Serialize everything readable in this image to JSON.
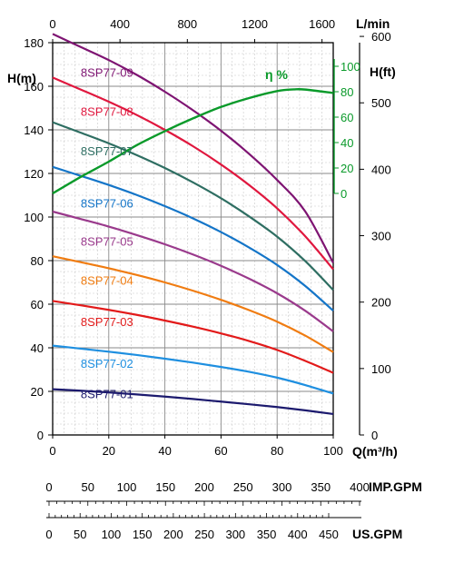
{
  "chart_data": {
    "type": "line",
    "title": "",
    "x_primary": {
      "label": "Q(m³/h)",
      "ticks": [
        0,
        20,
        40,
        60,
        80,
        100
      ],
      "range": [
        0,
        100
      ]
    },
    "x_top": {
      "label": "L/min",
      "ticks": [
        0,
        400,
        800,
        1200,
        1600
      ],
      "range": [
        0,
        1666.67
      ]
    },
    "x_imp_gpm": {
      "label": "IMP.GPM",
      "ticks": [
        0,
        50,
        100,
        150,
        200,
        250,
        300,
        350,
        400
      ],
      "range": [
        0,
        366.6
      ]
    },
    "x_us_gpm": {
      "label": "US.GPM",
      "ticks": [
        0,
        50,
        100,
        150,
        200,
        250,
        300,
        350,
        400,
        450
      ],
      "range": [
        0,
        440.3
      ]
    },
    "y_left": {
      "label": "H(m)",
      "ticks": [
        0,
        20,
        40,
        60,
        80,
        100,
        120,
        140,
        160,
        180
      ],
      "range": [
        0,
        180
      ]
    },
    "y_right": {
      "label": "H(ft)",
      "ticks": [
        0,
        100,
        200,
        300,
        400,
        500,
        600
      ],
      "range": [
        0,
        600
      ]
    },
    "y_efficiency": {
      "label": "η %",
      "ticks": [
        0,
        20,
        40,
        60,
        80,
        100
      ],
      "range": [
        0,
        100
      ],
      "color": "#0a9a2a"
    },
    "grid": true,
    "series": [
      {
        "name": "8SP77-01",
        "color": "#1c1a6e",
        "label_pos": [
          10,
          19
        ],
        "x": [
          0,
          10,
          20,
          30,
          40,
          50,
          60,
          70,
          80,
          90,
          100
        ],
        "y": [
          21,
          20.3,
          19.5,
          18.6,
          17.6,
          16.5,
          15.3,
          14.1,
          12.8,
          11.3,
          9.6
        ]
      },
      {
        "name": "8SP77-02",
        "color": "#1e8fe0",
        "label_pos": [
          10,
          33
        ],
        "x": [
          0,
          10,
          20,
          30,
          40,
          50,
          60,
          70,
          80,
          90,
          100
        ],
        "y": [
          41,
          39.6,
          38.2,
          36.7,
          35,
          33.2,
          31.2,
          29,
          26.3,
          22.9,
          19
        ]
      },
      {
        "name": "8SP77-03",
        "color": "#e21a1a",
        "label_pos": [
          10,
          52
        ],
        "x": [
          0,
          10,
          20,
          30,
          40,
          50,
          60,
          70,
          80,
          90,
          100
        ],
        "y": [
          61.5,
          59.5,
          57.4,
          55.1,
          52.5,
          49.7,
          46.6,
          43.1,
          39,
          34,
          28.5
        ]
      },
      {
        "name": "8SP77-04",
        "color": "#f07c11",
        "label_pos": [
          10,
          71
        ],
        "x": [
          0,
          10,
          20,
          30,
          40,
          50,
          60,
          70,
          80,
          90,
          100
        ],
        "y": [
          82,
          79.3,
          76.5,
          73.4,
          70,
          66.2,
          62,
          57.3,
          52,
          45.6,
          38
        ]
      },
      {
        "name": "8SP77-05",
        "color": "#9a3a8c",
        "label_pos": [
          10,
          89
        ],
        "x": [
          0,
          10,
          20,
          30,
          40,
          50,
          60,
          70,
          80,
          90,
          100
        ],
        "y": [
          102.5,
          99.1,
          95.6,
          91.7,
          87.5,
          82.8,
          77.6,
          71.7,
          65,
          57,
          47.5
        ]
      },
      {
        "name": "8SP77-06",
        "color": "#1475c8",
        "label_pos": [
          10,
          106.5
        ],
        "x": [
          0,
          10,
          20,
          30,
          40,
          50,
          60,
          70,
          80,
          90,
          100
        ],
        "y": [
          123,
          118.9,
          114.7,
          110.1,
          105,
          99.4,
          93.1,
          86,
          78,
          68.4,
          57
        ]
      },
      {
        "name": "8SP77-07",
        "color": "#2e6e62",
        "label_pos": [
          10,
          130.5
        ],
        "x": [
          0,
          10,
          20,
          30,
          40,
          50,
          60,
          70,
          80,
          90,
          100
        ],
        "y": [
          143.5,
          138.7,
          133.8,
          128.4,
          122.5,
          115.9,
          108.6,
          100.3,
          91,
          79.8,
          66.5
        ]
      },
      {
        "name": "8SP77-08",
        "color": "#e0173e",
        "label_pos": [
          10,
          148.5
        ],
        "x": [
          0,
          10,
          20,
          30,
          40,
          50,
          60,
          70,
          80,
          90,
          100
        ],
        "y": [
          164,
          158.5,
          152.9,
          146.8,
          140,
          132.5,
          124.1,
          114.7,
          104,
          91.2,
          76
        ]
      },
      {
        "name": "8SP77-09",
        "color": "#7e1472",
        "label_pos": [
          10,
          166.5
        ],
        "x": [
          0,
          10,
          20,
          30,
          40,
          50,
          60,
          70,
          80,
          90,
          100
        ],
        "y": [
          184,
          178,
          172,
          165.2,
          157.5,
          149,
          139.6,
          129,
          117,
          102.6,
          79
        ]
      },
      {
        "name": "η %",
        "color": "#0a9a2a",
        "axis": "efficiency",
        "x": [
          0,
          10,
          20,
          30,
          40,
          50,
          60,
          70,
          80,
          86,
          90,
          100
        ],
        "y": [
          0,
          13,
          25,
          38,
          49,
          59,
          68,
          75,
          80.5,
          81.8,
          81.7,
          79
        ]
      }
    ]
  }
}
